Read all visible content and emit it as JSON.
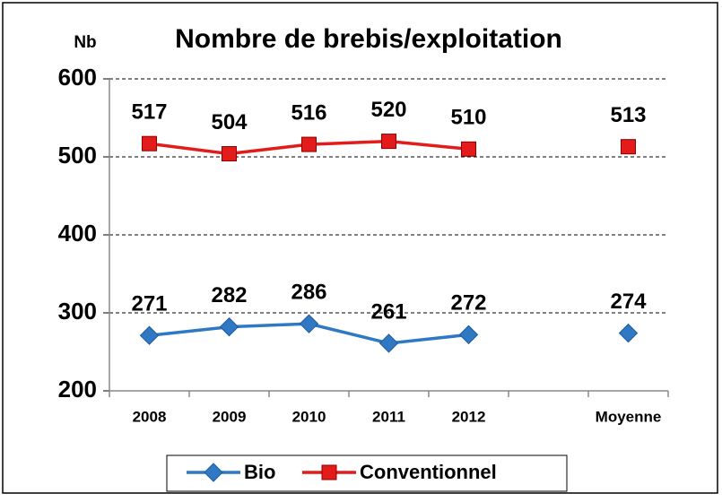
{
  "chart_data": {
    "type": "line",
    "title": "Nombre de brebis/exploitation",
    "y_label": "Nb",
    "categories": [
      "2008",
      "2009",
      "2010",
      "2011",
      "2012",
      null,
      "Moyenne"
    ],
    "series": [
      {
        "name": "Bio",
        "color": "#2f78c4",
        "marker": "diamond",
        "values": [
          271,
          282,
          286,
          261,
          272,
          null,
          274
        ]
      },
      {
        "name": "Conventionnel",
        "color": "#e31b1b",
        "marker": "square",
        "values": [
          517,
          504,
          516,
          520,
          510,
          null,
          513
        ]
      }
    ],
    "ylim": [
      200,
      600
    ],
    "yticks": [
      200,
      300,
      400,
      500,
      600
    ],
    "grid": true,
    "legend": "bottom"
  }
}
